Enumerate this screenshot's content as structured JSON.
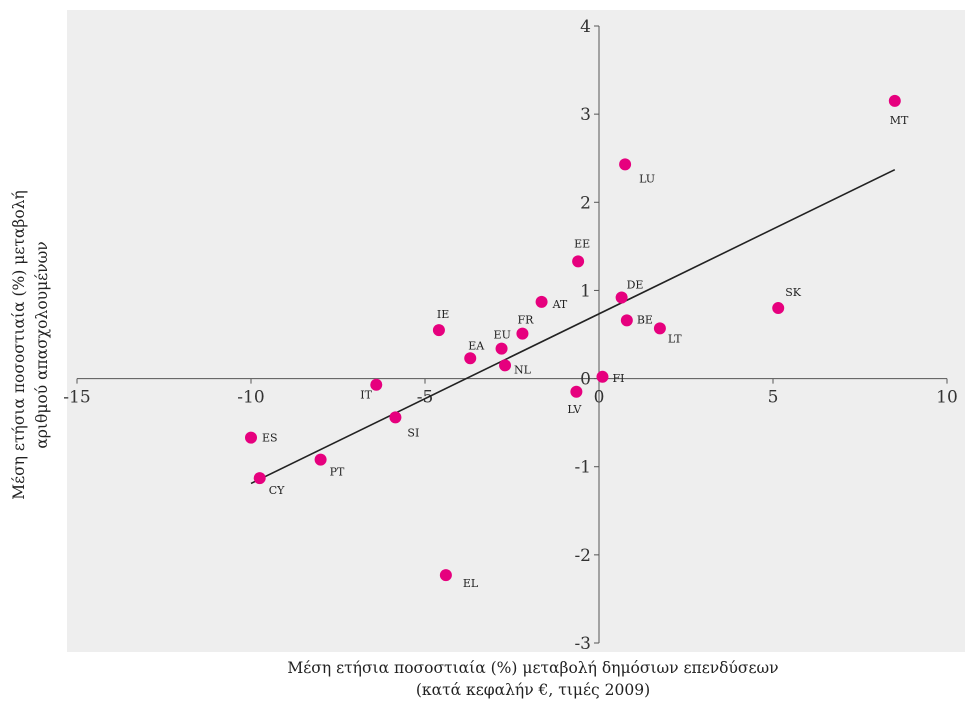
{
  "chart_data": {
    "type": "scatter",
    "xlabel_lines": [
      "Μέση ετήσια ποσοστιαία (%) μεταβολή δημόσιων επενδύσεων",
      "(κατά κεφαλήν €, τιμές 2009)"
    ],
    "ylabel_lines": [
      "Μέση ετήσια ποσοστιαία (%) μεταβολή",
      "αριθμού απασχολουμένων"
    ],
    "xlim": [
      -15,
      10
    ],
    "ylim": [
      -3,
      4
    ],
    "xticks": [
      -15,
      -10,
      -5,
      0,
      5,
      10
    ],
    "yticks": [
      -3,
      -2,
      -1,
      0,
      1,
      2,
      3,
      4
    ],
    "grid": false,
    "background_color": "#eeeeee",
    "marker_color": "#e6007e",
    "trend_color": "#222222",
    "points": [
      {
        "label": "MT",
        "x": 8.5,
        "y": 3.15
      },
      {
        "label": "LU",
        "x": 0.75,
        "y": 2.43
      },
      {
        "label": "EE",
        "x": -0.6,
        "y": 1.33
      },
      {
        "label": "DE",
        "x": 0.65,
        "y": 0.92
      },
      {
        "label": "SK",
        "x": 5.15,
        "y": 0.8
      },
      {
        "label": "AT",
        "x": -1.65,
        "y": 0.87
      },
      {
        "label": "BE",
        "x": 0.8,
        "y": 0.66
      },
      {
        "label": "LT",
        "x": 1.75,
        "y": 0.57
      },
      {
        "label": "IE",
        "x": -4.6,
        "y": 0.55
      },
      {
        "label": "FR",
        "x": -2.2,
        "y": 0.51
      },
      {
        "label": "EU",
        "x": -2.8,
        "y": 0.34
      },
      {
        "label": "EA",
        "x": -3.7,
        "y": 0.23
      },
      {
        "label": "NL",
        "x": -2.7,
        "y": 0.15
      },
      {
        "label": "FI",
        "x": 0.1,
        "y": 0.02
      },
      {
        "label": "IT",
        "x": -6.4,
        "y": -0.07
      },
      {
        "label": "LV",
        "x": -0.65,
        "y": -0.15
      },
      {
        "label": "SI",
        "x": -5.85,
        "y": -0.44
      },
      {
        "label": "ES",
        "x": -10.0,
        "y": -0.67
      },
      {
        "label": "PT",
        "x": -8.0,
        "y": -0.92
      },
      {
        "label": "CY",
        "x": -9.75,
        "y": -1.13
      },
      {
        "label": "EL",
        "x": -4.4,
        "y": -2.23
      }
    ],
    "trendline": {
      "x": [
        -10,
        8.5
      ],
      "y": [
        -1.19,
        2.37
      ]
    }
  }
}
